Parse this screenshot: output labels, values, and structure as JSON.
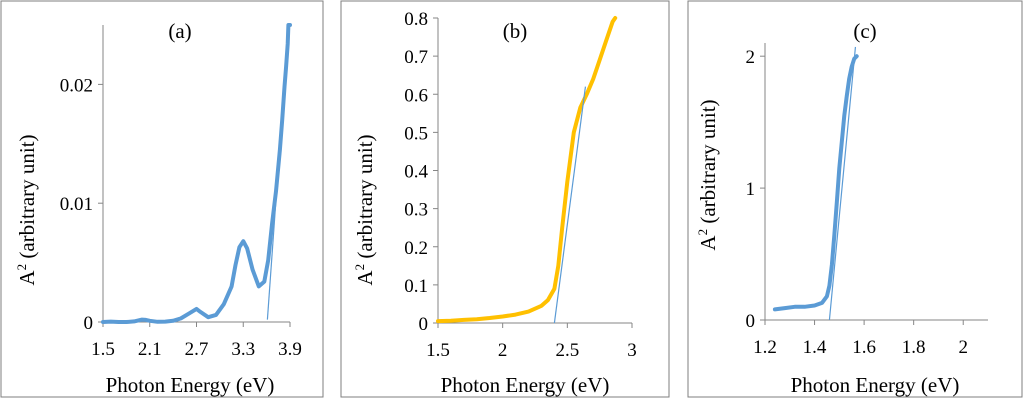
{
  "colors": {
    "blue": "#5b9bd5",
    "orange": "#ffc000",
    "fit": "#5b9bd5"
  },
  "chart_data": [
    {
      "type": "line",
      "panel_label": "(a)",
      "xlabel": "Photon Energy (eV)",
      "ylabel": "A",
      "ylabel_sup": "2",
      "ylabel_rest": " (arbitrary unit)",
      "xlim": [
        1.5,
        3.9
      ],
      "ylim": [
        0,
        0.025
      ],
      "xticks": [
        1.5,
        2.1,
        2.7,
        3.3,
        3.9
      ],
      "xtick_labels": [
        "1.5",
        "2.1",
        "2.7",
        "3.3",
        "3.9"
      ],
      "yticks": [
        0,
        0.01,
        0.02
      ],
      "ytick_labels": [
        "0",
        "0.01",
        "0.02"
      ],
      "grid": false,
      "series": [
        {
          "color": "blue",
          "x": [
            1.5,
            1.6,
            1.7,
            1.8,
            1.9,
            2.0,
            2.05,
            2.1,
            2.2,
            2.3,
            2.4,
            2.5,
            2.6,
            2.7,
            2.75,
            2.85,
            2.95,
            3.05,
            3.15,
            3.2,
            3.25,
            3.3,
            3.35,
            3.42,
            3.5,
            3.57,
            3.62,
            3.67,
            3.72,
            3.77,
            3.8,
            3.83,
            3.85,
            3.87,
            3.88,
            3.9
          ],
          "y": [
            0.0,
            3e-05,
            0.0,
            0.0,
            5e-05,
            0.0002,
            0.00018,
            0.0001,
            2e-05,
            3e-05,
            0.0001,
            0.0003,
            0.0007,
            0.0011,
            0.00085,
            0.0004,
            0.0006,
            0.0015,
            0.003,
            0.0048,
            0.0063,
            0.0068,
            0.0062,
            0.0044,
            0.003,
            0.0034,
            0.0052,
            0.0083,
            0.011,
            0.0145,
            0.017,
            0.0198,
            0.0215,
            0.0234,
            0.025,
            0.025
          ]
        }
      ],
      "fit_line": {
        "x": [
          3.61,
          3.88
        ],
        "y": [
          0.0002,
          0.025
        ]
      }
    },
    {
      "type": "line",
      "panel_label": "(b)",
      "xlabel": "Photon Energy (eV)",
      "ylabel": "A",
      "ylabel_sup": "2",
      "ylabel_rest": " (arbitrary unit)",
      "xlim": [
        1.5,
        3.0
      ],
      "ylim": [
        0,
        0.8
      ],
      "xticks": [
        1.5,
        2.0,
        2.5,
        3.0
      ],
      "xtick_labels": [
        "1.5",
        "2",
        "2.5",
        "3"
      ],
      "yticks": [
        0,
        0.1,
        0.2,
        0.3,
        0.4,
        0.5,
        0.6,
        0.7,
        0.8
      ],
      "ytick_labels": [
        "0",
        "0.1",
        "0.2",
        "0.3",
        "0.4",
        "0.5",
        "0.6",
        "0.7",
        "0.8"
      ],
      "grid": false,
      "series": [
        {
          "color": "orange",
          "x": [
            1.5,
            1.6,
            1.7,
            1.8,
            1.9,
            2.0,
            2.1,
            2.2,
            2.3,
            2.35,
            2.4,
            2.43,
            2.46,
            2.5,
            2.55,
            2.6,
            2.65,
            2.7,
            2.75,
            2.8,
            2.85,
            2.87
          ],
          "y": [
            0.005,
            0.006,
            0.008,
            0.01,
            0.013,
            0.017,
            0.022,
            0.03,
            0.045,
            0.06,
            0.09,
            0.15,
            0.25,
            0.37,
            0.5,
            0.565,
            0.6,
            0.64,
            0.69,
            0.74,
            0.79,
            0.8
          ]
        }
      ],
      "fit_line": {
        "x": [
          2.4,
          2.64
        ],
        "y": [
          0.0,
          0.62
        ]
      }
    },
    {
      "type": "line",
      "panel_label": "(c)",
      "xlabel": "Photon Energy (eV)",
      "ylabel": "A",
      "ylabel_sup": "2",
      "ylabel_rest": " (arbitrary unit)",
      "xlim": [
        1.2,
        2.1
      ],
      "ylim": [
        0,
        2.1
      ],
      "xticks": [
        1.2,
        1.4,
        1.6,
        1.8,
        2.0
      ],
      "xtick_labels": [
        "1.2",
        "1.4",
        "1.6",
        "1.8",
        "2"
      ],
      "yticks": [
        0,
        1,
        2
      ],
      "ytick_labels": [
        "0",
        "1",
        "2"
      ],
      "grid": false,
      "series": [
        {
          "color": "blue",
          "x": [
            1.24,
            1.28,
            1.32,
            1.36,
            1.4,
            1.43,
            1.45,
            1.46,
            1.47,
            1.48,
            1.49,
            1.5,
            1.51,
            1.52,
            1.53,
            1.54,
            1.55,
            1.56,
            1.57
          ],
          "y": [
            0.08,
            0.09,
            0.1,
            0.1,
            0.11,
            0.13,
            0.18,
            0.26,
            0.42,
            0.65,
            0.9,
            1.15,
            1.35,
            1.55,
            1.7,
            1.83,
            1.92,
            1.98,
            2.0
          ]
        }
      ],
      "fit_line": {
        "x": [
          1.46,
          1.565
        ],
        "y": [
          0.0,
          2.07
        ]
      }
    }
  ]
}
